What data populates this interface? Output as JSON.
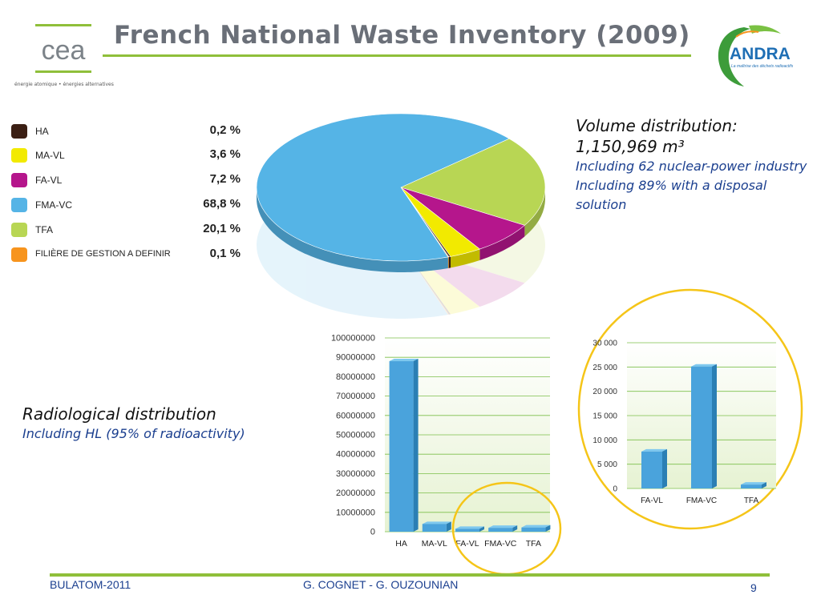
{
  "header": {
    "title": "French National Waste Inventory (2009)",
    "cea_logo_text": "cea",
    "cea_caption": "énergie atomique • énergies alternatives",
    "andra_logo_text": "ANDRA",
    "andra_tagline": "La maîtrise des déchets radioactifs"
  },
  "legend": {
    "items": [
      {
        "label": "HA",
        "value": "0,2 %",
        "color": "#3b1f14"
      },
      {
        "label": "MA-VL",
        "value": "3,6 %",
        "color": "#f2ea00"
      },
      {
        "label": "FA-VL",
        "value": "7,2 %",
        "color": "#b5168c"
      },
      {
        "label": "FMA-VC",
        "value": "68,8 %",
        "color": "#55b4e6"
      },
      {
        "label": "TFA",
        "value": "20,1 %",
        "color": "#b8d654"
      },
      {
        "label": "FILIÈRE DE GESTION A DEFINIR",
        "value": "0,1 %",
        "color": "#f7941d"
      }
    ]
  },
  "volume": {
    "title": "Volume distribution:",
    "total": "1,150,969 m³",
    "note1": "Including 62 nuclear-power industry",
    "note2": "Including 89% with a disposal solution"
  },
  "radiological": {
    "title": "Radiological distribution",
    "note": "Including HL (95% of radioactivity)"
  },
  "chart_data": [
    {
      "type": "pie",
      "categories": [
        "HA",
        "MA-VL",
        "FA-VL",
        "FMA-VC",
        "TFA",
        "FILIÈRE DE GESTION A DEFINIR"
      ],
      "values": [
        0.2,
        3.6,
        7.2,
        68.8,
        20.1,
        0.1
      ],
      "colors": [
        "#3b1f14",
        "#f2ea00",
        "#b5168c",
        "#55b4e6",
        "#b8d654",
        "#f7941d"
      ]
    },
    {
      "type": "bar",
      "categories": [
        "HA",
        "MA-VL",
        "FA-VL",
        "FMA-VC",
        "TFA"
      ],
      "values": [
        88000000,
        4000000,
        1500000,
        2000000,
        2200000
      ],
      "ylim": [
        0,
        100000000
      ],
      "yticks": [
        "0",
        "10000000",
        "20000000",
        "30000000",
        "40000000",
        "50000000",
        "60000000",
        "70000000",
        "80000000",
        "90000000",
        "100000000"
      ]
    },
    {
      "type": "bar",
      "categories": [
        "FA-VL",
        "FMA-VC",
        "TFA"
      ],
      "values": [
        7600,
        25100,
        800
      ],
      "ylim": [
        0,
        30000
      ],
      "yticks": [
        "0",
        "5 000",
        "10 000",
        "15 000",
        "20 000",
        "25 000",
        "30 000"
      ]
    }
  ],
  "footer": {
    "left": "BULATOM-2011",
    "center": "G. COGNET - G. OUZOUNIAN",
    "page": "9"
  }
}
